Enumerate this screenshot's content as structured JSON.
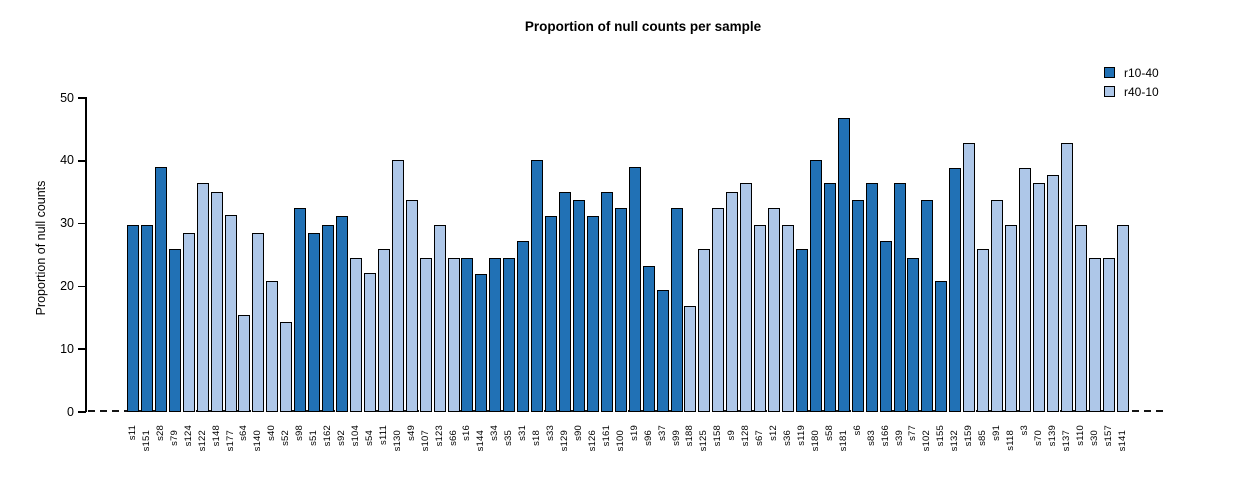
{
  "chart_data": {
    "type": "bar",
    "title": "Proportion of null counts per sample",
    "ylabel": "Proportion of null counts",
    "xlabel": "",
    "ylim": [
      0,
      50
    ],
    "yticks": [
      0,
      10,
      20,
      30,
      40,
      50
    ],
    "grid": false,
    "legend_position": "top-right",
    "legend": [
      "r10-40",
      "r40-10"
    ],
    "series_colors": {
      "r10-40": "#2171B5",
      "r40-10": "#AEC7E8"
    },
    "baseline_style": "dashed",
    "bars": [
      {
        "label": "s11",
        "value": 29.8,
        "series": "r10-40"
      },
      {
        "label": "s151",
        "value": 29.8,
        "series": "r10-40"
      },
      {
        "label": "s28",
        "value": 39.0,
        "series": "r10-40"
      },
      {
        "label": "s79",
        "value": 26.0,
        "series": "r10-40"
      },
      {
        "label": "s124",
        "value": 28.5,
        "series": "r40-10"
      },
      {
        "label": "s122",
        "value": 36.5,
        "series": "r40-10"
      },
      {
        "label": "s148",
        "value": 35.1,
        "series": "r40-10"
      },
      {
        "label": "s177",
        "value": 31.3,
        "series": "r40-10"
      },
      {
        "label": "s64",
        "value": 15.5,
        "series": "r40-10"
      },
      {
        "label": "s140",
        "value": 28.5,
        "series": "r40-10"
      },
      {
        "label": "s40",
        "value": 20.8,
        "series": "r40-10"
      },
      {
        "label": "s52",
        "value": 14.4,
        "series": "r40-10"
      },
      {
        "label": "s98",
        "value": 32.5,
        "series": "r10-40"
      },
      {
        "label": "s51",
        "value": 28.5,
        "series": "r10-40"
      },
      {
        "label": "s162",
        "value": 29.8,
        "series": "r10-40"
      },
      {
        "label": "s92",
        "value": 31.2,
        "series": "r10-40"
      },
      {
        "label": "s104",
        "value": 24.5,
        "series": "r40-10"
      },
      {
        "label": "s54",
        "value": 22.1,
        "series": "r40-10"
      },
      {
        "label": "s111",
        "value": 26.0,
        "series": "r40-10"
      },
      {
        "label": "s130",
        "value": 40.2,
        "series": "r40-10"
      },
      {
        "label": "s49",
        "value": 33.8,
        "series": "r40-10"
      },
      {
        "label": "s107",
        "value": 24.6,
        "series": "r40-10"
      },
      {
        "label": "s123",
        "value": 29.8,
        "series": "r40-10"
      },
      {
        "label": "s66",
        "value": 24.6,
        "series": "r40-10"
      },
      {
        "label": "s16",
        "value": 24.6,
        "series": "r10-40"
      },
      {
        "label": "s144",
        "value": 22.0,
        "series": "r10-40"
      },
      {
        "label": "s34",
        "value": 24.6,
        "series": "r10-40"
      },
      {
        "label": "s35",
        "value": 24.6,
        "series": "r10-40"
      },
      {
        "label": "s31",
        "value": 27.2,
        "series": "r10-40"
      },
      {
        "label": "s18",
        "value": 40.2,
        "series": "r10-40"
      },
      {
        "label": "s33",
        "value": 31.2,
        "series": "r10-40"
      },
      {
        "label": "s129",
        "value": 35.0,
        "series": "r10-40"
      },
      {
        "label": "s90",
        "value": 33.8,
        "series": "r10-40"
      },
      {
        "label": "s126",
        "value": 31.2,
        "series": "r10-40"
      },
      {
        "label": "s161",
        "value": 35.0,
        "series": "r10-40"
      },
      {
        "label": "s100",
        "value": 32.5,
        "series": "r10-40"
      },
      {
        "label": "s19",
        "value": 39.0,
        "series": "r10-40"
      },
      {
        "label": "s96",
        "value": 23.3,
        "series": "r10-40"
      },
      {
        "label": "s37",
        "value": 19.5,
        "series": "r10-40"
      },
      {
        "label": "s99",
        "value": 32.5,
        "series": "r10-40"
      },
      {
        "label": "s188",
        "value": 16.8,
        "series": "r40-10"
      },
      {
        "label": "s125",
        "value": 26.0,
        "series": "r40-10"
      },
      {
        "label": "s158",
        "value": 32.5,
        "series": "r40-10"
      },
      {
        "label": "s9",
        "value": 35.0,
        "series": "r40-10"
      },
      {
        "label": "s128",
        "value": 36.4,
        "series": "r40-10"
      },
      {
        "label": "s67",
        "value": 29.8,
        "series": "r40-10"
      },
      {
        "label": "s12",
        "value": 32.5,
        "series": "r40-10"
      },
      {
        "label": "s36",
        "value": 29.8,
        "series": "r40-10"
      },
      {
        "label": "s119",
        "value": 26.0,
        "series": "r10-40"
      },
      {
        "label": "s180",
        "value": 40.2,
        "series": "r10-40"
      },
      {
        "label": "s58",
        "value": 36.4,
        "series": "r10-40"
      },
      {
        "label": "s181",
        "value": 46.8,
        "series": "r10-40"
      },
      {
        "label": "s6",
        "value": 33.8,
        "series": "r10-40"
      },
      {
        "label": "s83",
        "value": 36.4,
        "series": "r10-40"
      },
      {
        "label": "s166",
        "value": 27.2,
        "series": "r10-40"
      },
      {
        "label": "s39",
        "value": 36.4,
        "series": "r10-40"
      },
      {
        "label": "s77",
        "value": 24.5,
        "series": "r10-40"
      },
      {
        "label": "s102",
        "value": 33.8,
        "series": "r10-40"
      },
      {
        "label": "s155",
        "value": 20.8,
        "series": "r10-40"
      },
      {
        "label": "s132",
        "value": 38.9,
        "series": "r10-40"
      },
      {
        "label": "s159",
        "value": 42.8,
        "series": "r40-10"
      },
      {
        "label": "s85",
        "value": 26.0,
        "series": "r40-10"
      },
      {
        "label": "s91",
        "value": 33.8,
        "series": "r40-10"
      },
      {
        "label": "s118",
        "value": 29.8,
        "series": "r40-10"
      },
      {
        "label": "s3",
        "value": 38.9,
        "series": "r40-10"
      },
      {
        "label": "s70",
        "value": 36.5,
        "series": "r40-10"
      },
      {
        "label": "s139",
        "value": 37.7,
        "series": "r40-10"
      },
      {
        "label": "s137",
        "value": 42.8,
        "series": "r40-10"
      },
      {
        "label": "s110",
        "value": 29.8,
        "series": "r40-10"
      },
      {
        "label": "s30",
        "value": 24.5,
        "series": "r40-10"
      },
      {
        "label": "s157",
        "value": 24.5,
        "series": "r40-10"
      },
      {
        "label": "s141",
        "value": 29.8,
        "series": "r40-10"
      }
    ]
  }
}
